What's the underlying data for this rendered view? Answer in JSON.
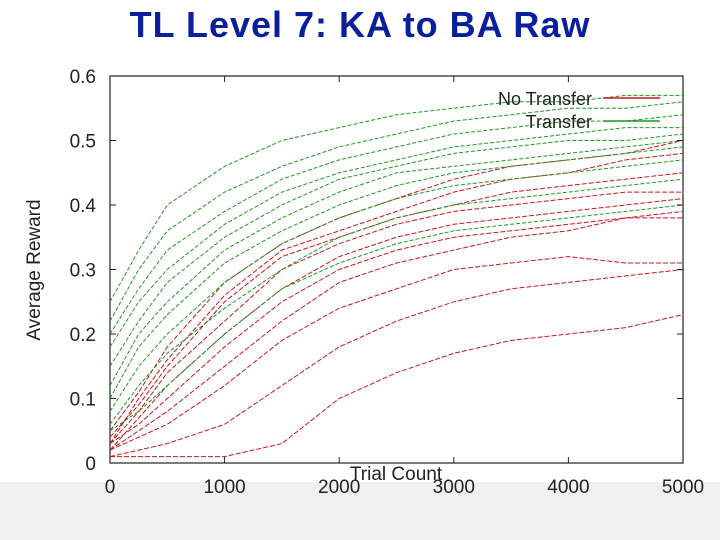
{
  "slide": {
    "title": "TL Level 7: KA to BA Raw"
  },
  "colors": {
    "title": "#0b1e9c",
    "no_transfer": "#c8161d",
    "transfer": "#1c9a1c",
    "lower_band": "#f0f0f0"
  },
  "chart_data": {
    "type": "line",
    "title": "",
    "xlabel": "Trial Count",
    "ylabel": "Average Reward",
    "xlim": [
      0,
      5000
    ],
    "ylim": [
      0,
      0.6
    ],
    "x_ticks": [
      "0",
      "1000",
      "2000",
      "3000",
      "4000",
      "5000"
    ],
    "y_ticks": [
      "0",
      "0.1",
      "0.2",
      "0.3",
      "0.4",
      "0.5",
      "0.6"
    ],
    "grid": false,
    "legend_position": "top-right",
    "x": [
      0,
      250,
      500,
      1000,
      1500,
      2000,
      2500,
      3000,
      3500,
      4000,
      4500,
      5000
    ],
    "series": [
      {
        "name": "No Transfer",
        "group": "no_transfer",
        "values": [
          0.01,
          0.01,
          0.01,
          0.01,
          0.03,
          0.1,
          0.14,
          0.17,
          0.19,
          0.2,
          0.21,
          0.23
        ]
      },
      {
        "name": "No Transfer",
        "group": "no_transfer",
        "values": [
          0.01,
          0.02,
          0.03,
          0.06,
          0.12,
          0.18,
          0.22,
          0.25,
          0.27,
          0.28,
          0.29,
          0.3
        ]
      },
      {
        "name": "No Transfer",
        "group": "no_transfer",
        "values": [
          0.02,
          0.04,
          0.06,
          0.12,
          0.19,
          0.24,
          0.27,
          0.3,
          0.31,
          0.32,
          0.31,
          0.31
        ]
      },
      {
        "name": "No Transfer",
        "group": "no_transfer",
        "values": [
          0.02,
          0.05,
          0.08,
          0.15,
          0.22,
          0.28,
          0.31,
          0.33,
          0.35,
          0.36,
          0.38,
          0.38
        ]
      },
      {
        "name": "No Transfer",
        "group": "no_transfer",
        "values": [
          0.03,
          0.06,
          0.1,
          0.18,
          0.25,
          0.3,
          0.33,
          0.35,
          0.36,
          0.37,
          0.38,
          0.39
        ]
      },
      {
        "name": "No Transfer",
        "group": "no_transfer",
        "values": [
          0.02,
          0.07,
          0.12,
          0.2,
          0.27,
          0.32,
          0.35,
          0.37,
          0.38,
          0.39,
          0.4,
          0.41
        ]
      },
      {
        "name": "No Transfer",
        "group": "no_transfer",
        "values": [
          0.03,
          0.08,
          0.14,
          0.22,
          0.3,
          0.34,
          0.37,
          0.39,
          0.4,
          0.41,
          0.42,
          0.42
        ]
      },
      {
        "name": "No Transfer",
        "group": "no_transfer",
        "values": [
          0.04,
          0.09,
          0.15,
          0.25,
          0.32,
          0.35,
          0.38,
          0.4,
          0.42,
          0.43,
          0.44,
          0.45
        ]
      },
      {
        "name": "No Transfer",
        "group": "no_transfer",
        "values": [
          0.03,
          0.1,
          0.16,
          0.26,
          0.33,
          0.36,
          0.39,
          0.42,
          0.44,
          0.45,
          0.47,
          0.48
        ]
      },
      {
        "name": "No Transfer",
        "group": "no_transfer",
        "values": [
          0.05,
          0.11,
          0.18,
          0.28,
          0.34,
          0.38,
          0.41,
          0.44,
          0.46,
          0.47,
          0.48,
          0.5
        ]
      },
      {
        "name": "Transfer",
        "group": "transfer",
        "values": [
          0.05,
          0.08,
          0.12,
          0.2,
          0.27,
          0.31,
          0.34,
          0.36,
          0.37,
          0.38,
          0.39,
          0.4
        ]
      },
      {
        "name": "Transfer",
        "group": "transfer",
        "values": [
          0.06,
          0.12,
          0.17,
          0.24,
          0.3,
          0.35,
          0.38,
          0.4,
          0.41,
          0.42,
          0.43,
          0.44
        ]
      },
      {
        "name": "Transfer",
        "group": "transfer",
        "values": [
          0.08,
          0.15,
          0.2,
          0.28,
          0.34,
          0.38,
          0.41,
          0.43,
          0.44,
          0.45,
          0.46,
          0.47
        ]
      },
      {
        "name": "Transfer",
        "group": "transfer",
        "values": [
          0.1,
          0.18,
          0.23,
          0.31,
          0.36,
          0.4,
          0.43,
          0.45,
          0.46,
          0.47,
          0.48,
          0.49
        ]
      },
      {
        "name": "Transfer",
        "group": "transfer",
        "values": [
          0.12,
          0.2,
          0.25,
          0.33,
          0.38,
          0.42,
          0.45,
          0.46,
          0.47,
          0.48,
          0.49,
          0.5
        ]
      },
      {
        "name": "Transfer",
        "group": "transfer",
        "values": [
          0.15,
          0.22,
          0.28,
          0.35,
          0.4,
          0.44,
          0.46,
          0.48,
          0.49,
          0.5,
          0.5,
          0.51
        ]
      },
      {
        "name": "Transfer",
        "group": "transfer",
        "values": [
          0.18,
          0.25,
          0.3,
          0.37,
          0.42,
          0.45,
          0.47,
          0.49,
          0.5,
          0.51,
          0.52,
          0.52
        ]
      },
      {
        "name": "Transfer",
        "group": "transfer",
        "values": [
          0.2,
          0.27,
          0.33,
          0.39,
          0.44,
          0.47,
          0.49,
          0.51,
          0.52,
          0.53,
          0.53,
          0.54
        ]
      },
      {
        "name": "Transfer",
        "group": "transfer",
        "values": [
          0.22,
          0.3,
          0.36,
          0.42,
          0.46,
          0.49,
          0.51,
          0.53,
          0.54,
          0.55,
          0.55,
          0.56
        ]
      },
      {
        "name": "Transfer",
        "group": "transfer",
        "values": [
          0.25,
          0.33,
          0.4,
          0.46,
          0.5,
          0.52,
          0.54,
          0.55,
          0.56,
          0.56,
          0.57,
          0.57
        ]
      }
    ]
  }
}
